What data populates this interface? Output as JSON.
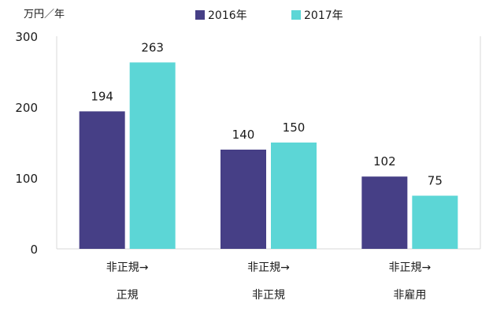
{
  "chart_data": {
    "type": "bar",
    "title": "",
    "unit_label": "万円／年",
    "xlabel": "",
    "ylabel": "",
    "ylim": [
      0,
      300
    ],
    "yticks": [
      0,
      100,
      200,
      300
    ],
    "grid": false,
    "legend_position": "top",
    "categories": [
      {
        "line1": "非正規→",
        "line2": "正規"
      },
      {
        "line1": "非正規→",
        "line2": "非正規"
      },
      {
        "line1": "非正規→",
        "line2": "非雇用"
      }
    ],
    "series": [
      {
        "name": "2016年",
        "color": "#463f86",
        "values": [
          194,
          140,
          102
        ]
      },
      {
        "name": "2017年",
        "color": "#5cd6d6",
        "values": [
          263,
          150,
          75
        ]
      }
    ]
  }
}
